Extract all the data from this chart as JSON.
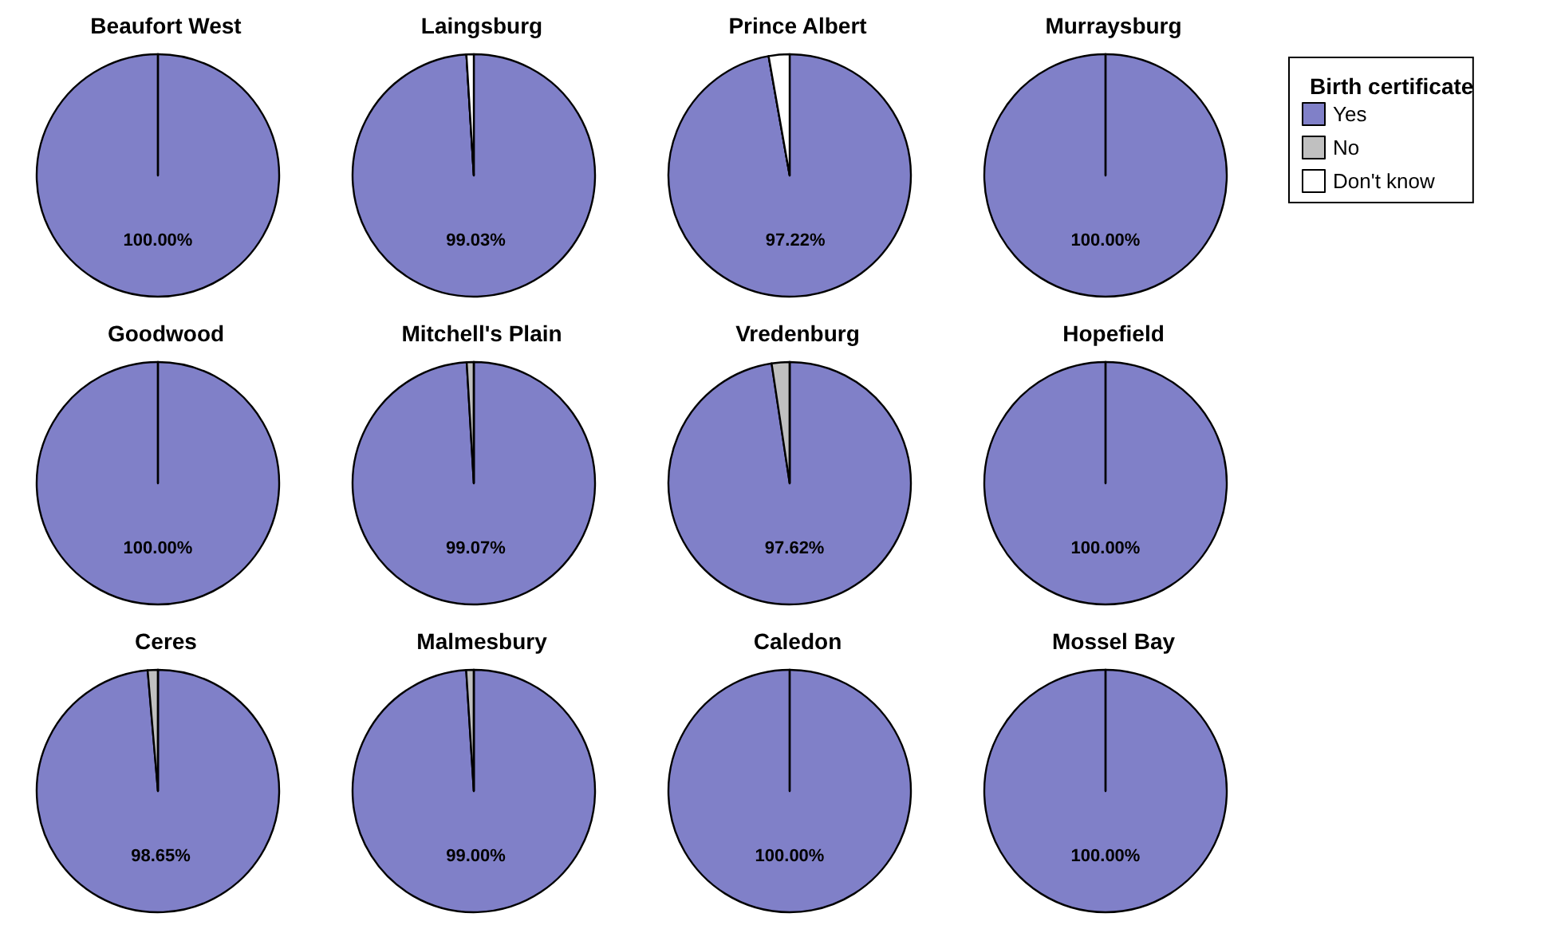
{
  "chart_data": [
    {
      "type": "pie",
      "title": "Beaufort West",
      "categories": [
        null,
        null,
        null
      ],
      "values": [
        100,
        0,
        0
      ],
      "colors": [
        "#8080c8",
        "#c0c0c0",
        "#ffffff"
      ],
      "value_labels": [
        "100.00%",
        null,
        null
      ]
    },
    {
      "type": "pie",
      "title": "Laingsburg",
      "categories": [
        null,
        null,
        null
      ],
      "values": [
        99.03,
        0,
        0.97
      ],
      "colors": [
        "#8080c8",
        "#c0c0c0",
        "#ffffff"
      ],
      "value_labels": [
        "99.03%",
        null,
        null
      ]
    },
    {
      "type": "pie",
      "title": "Prince Albert",
      "categories": [
        null,
        null,
        null
      ],
      "values": [
        97.22,
        0,
        2.78
      ],
      "colors": [
        "#8080c8",
        "#c0c0c0",
        "#ffffff"
      ],
      "value_labels": [
        "97.22%",
        null,
        null
      ]
    },
    {
      "type": "pie",
      "title": "Murraysburg",
      "categories": [
        "Yes",
        "No",
        "Don't know"
      ],
      "values": [
        100,
        0,
        0
      ],
      "colors": [
        "#8080c8",
        "#c0c0c0",
        "#ffffff"
      ],
      "value_labels": [
        "100.00%",
        null,
        null
      ],
      "legend": "right",
      "legend_title": "Birth certificate"
    },
    {
      "type": "pie",
      "title": "Goodwood",
      "categories": [
        null,
        null,
        null
      ],
      "values": [
        100,
        0,
        0
      ],
      "colors": [
        "#8080c8",
        "#c0c0c0",
        "#ffffff"
      ],
      "value_labels": [
        "100.00%",
        null,
        null
      ]
    },
    {
      "type": "pie",
      "title": "Mitchell's Plain",
      "categories": [
        null,
        null,
        null
      ],
      "values": [
        99.07,
        0.93,
        0
      ],
      "colors": [
        "#8080c8",
        "#c0c0c0",
        "#ffffff"
      ],
      "value_labels": [
        "99.07%",
        null,
        null
      ]
    },
    {
      "type": "pie",
      "title": "Vredenburg",
      "categories": [
        null,
        null,
        null
      ],
      "values": [
        97.62,
        2.38,
        0
      ],
      "colors": [
        "#8080c8",
        "#c0c0c0",
        "#ffffff"
      ],
      "value_labels": [
        "97.62%",
        null,
        null
      ]
    },
    {
      "type": "pie",
      "title": "Hopefield",
      "categories": [
        null,
        null,
        null
      ],
      "values": [
        100,
        0,
        0
      ],
      "colors": [
        "#8080c8",
        "#c0c0c0",
        "#ffffff"
      ],
      "value_labels": [
        "100.00%",
        null,
        null
      ]
    },
    {
      "type": "pie",
      "title": "Ceres",
      "categories": [
        null,
        null,
        null
      ],
      "values": [
        98.65,
        1.35,
        0
      ],
      "colors": [
        "#8080c8",
        "#c0c0c0",
        "#ffffff"
      ],
      "value_labels": [
        "98.65%",
        null,
        null
      ]
    },
    {
      "type": "pie",
      "title": "Malmesbury",
      "categories": [
        null,
        null,
        null
      ],
      "values": [
        99.0,
        1.0,
        0
      ],
      "colors": [
        "#8080c8",
        "#c0c0c0",
        "#ffffff"
      ],
      "value_labels": [
        "99.00%",
        null,
        null
      ]
    },
    {
      "type": "pie",
      "title": "Caledon",
      "categories": [
        null,
        null,
        null
      ],
      "values": [
        100,
        0,
        0
      ],
      "colors": [
        "#8080c8",
        "#c0c0c0",
        "#ffffff"
      ],
      "value_labels": [
        "100.00%",
        null,
        null
      ]
    },
    {
      "type": "pie",
      "title": "Mossel Bay",
      "categories": [
        null,
        null,
        null
      ],
      "values": [
        100,
        0,
        0
      ],
      "colors": [
        "#8080c8",
        "#c0c0c0",
        "#ffffff"
      ],
      "value_labels": [
        "100.00%",
        null,
        null
      ]
    }
  ]
}
